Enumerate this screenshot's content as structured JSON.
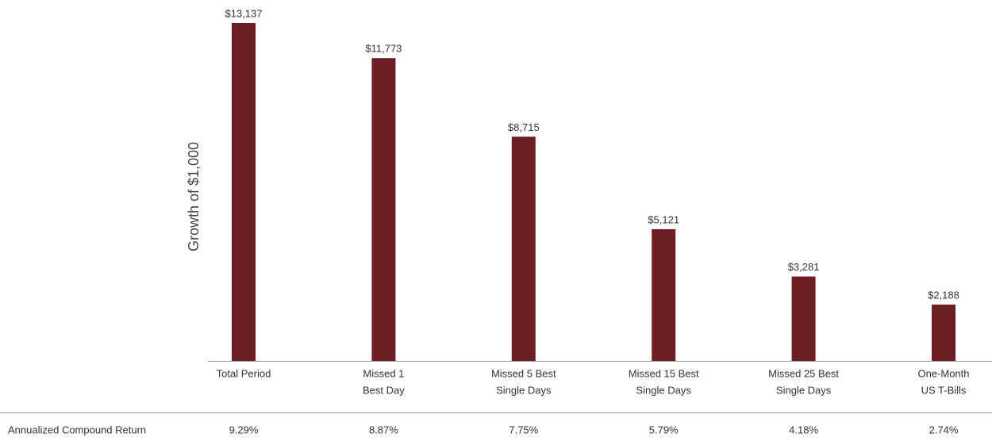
{
  "chart_data": {
    "type": "bar",
    "y_label": "Growth of $1,000",
    "categories": [
      [
        "Total Period"
      ],
      [
        "Missed 1",
        "Best Day"
      ],
      [
        "Missed 5 Best",
        "Single Days"
      ],
      [
        "Missed 15 Best",
        "Single Days"
      ],
      [
        "Missed 25 Best",
        "Single Days"
      ],
      [
        "One-Month",
        "US T-Bills"
      ]
    ],
    "values": [
      13137,
      11773,
      8715,
      5121,
      3281,
      2188
    ],
    "value_labels": [
      "$13,137",
      "$11,773",
      "$8,715",
      "$5,121",
      "$3,281",
      "$2,188"
    ],
    "color": "#6b1f24",
    "ylim": [
      0,
      14000
    ],
    "returns_label": "Annualized Compound Return",
    "returns": [
      "9.29%",
      "8.87%",
      "7.75%",
      "5.79%",
      "4.18%",
      "2.74%"
    ]
  }
}
